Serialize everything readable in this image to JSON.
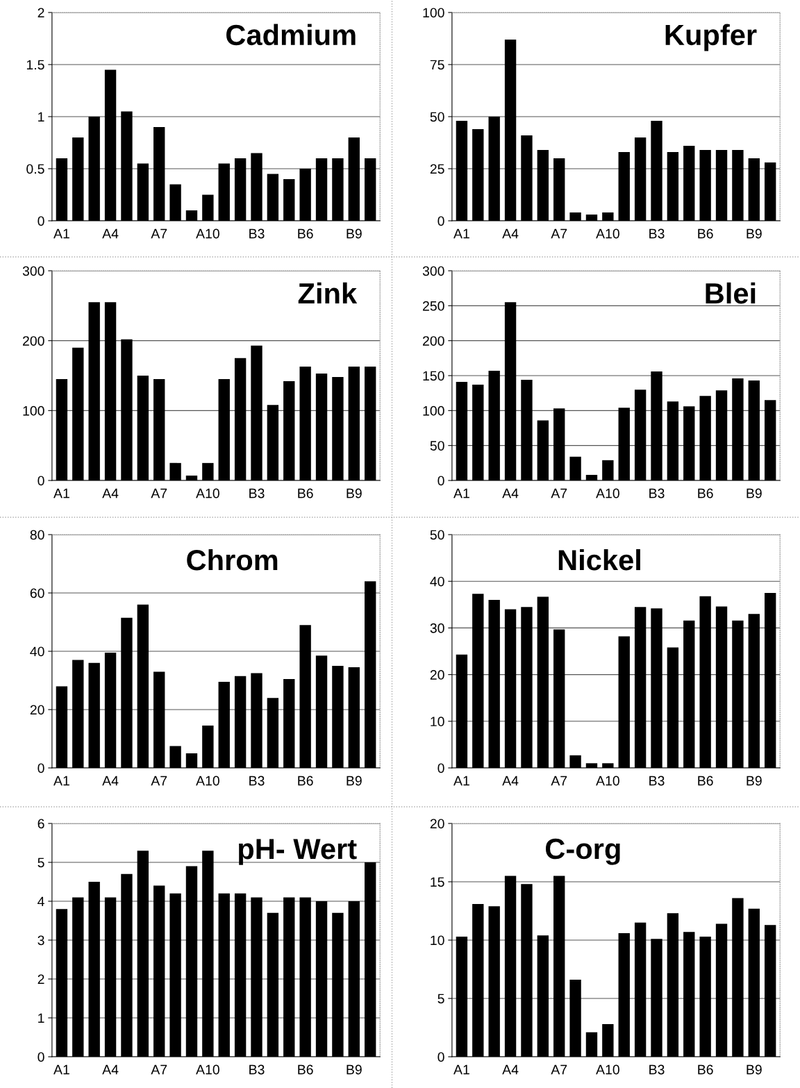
{
  "chart_data": [
    {
      "type": "bar",
      "title": "Cadmium",
      "categories": [
        "A1",
        null,
        null,
        "A4",
        null,
        null,
        "A7",
        null,
        null,
        "A10",
        null,
        null,
        "B3",
        null,
        null,
        "B6",
        null,
        null,
        "B9",
        null
      ],
      "color": "#000000",
      "values": [
        0.6,
        0.8,
        1.0,
        1.45,
        1.05,
        0.55,
        0.9,
        0.35,
        0.1,
        0.25,
        0.55,
        0.6,
        0.65,
        0.45,
        0.4,
        0.5,
        0.6,
        0.6,
        0.8,
        0.6
      ],
      "ylim": [
        0,
        2
      ],
      "yticks": [
        0,
        0.5,
        1,
        1.5,
        2
      ],
      "grid": "y",
      "legend": false
    },
    {
      "type": "bar",
      "title": "Kupfer",
      "categories": [
        "A1",
        null,
        null,
        "A4",
        null,
        null,
        "A7",
        null,
        null,
        "A10",
        null,
        null,
        "B3",
        null,
        null,
        "B6",
        null,
        null,
        "B9",
        null
      ],
      "color": "#000000",
      "values": [
        48,
        44,
        50,
        87,
        41,
        34,
        30,
        4,
        3,
        4,
        33,
        40,
        48,
        33,
        36,
        34,
        34,
        34,
        30,
        28
      ],
      "ylim": [
        0,
        100
      ],
      "yticks": [
        0,
        25,
        50,
        75,
        100
      ],
      "grid": "y",
      "legend": false
    },
    {
      "type": "bar",
      "title": "Zink",
      "categories": [
        "A1",
        null,
        null,
        "A4",
        null,
        null,
        "A7",
        null,
        null,
        "A10",
        null,
        null,
        "B3",
        null,
        null,
        "B6",
        null,
        null,
        "B9",
        null
      ],
      "color": "#000000",
      "values": [
        145,
        190,
        255,
        255,
        202,
        150,
        145,
        25,
        7,
        25,
        145,
        175,
        193,
        108,
        142,
        163,
        153,
        148,
        163,
        163
      ],
      "ylim": [
        0,
        300
      ],
      "yticks": [
        0,
        100,
        200,
        300
      ],
      "grid": "y",
      "legend": false
    },
    {
      "type": "bar",
      "title": "Blei",
      "categories": [
        "A1",
        null,
        null,
        "A4",
        null,
        null,
        "A7",
        null,
        null,
        "A10",
        null,
        null,
        "B3",
        null,
        null,
        "B6",
        null,
        null,
        "B9",
        null
      ],
      "color": "#000000",
      "values": [
        141,
        137,
        157,
        255,
        144,
        86,
        103,
        34,
        8,
        29,
        104,
        130,
        156,
        113,
        106,
        121,
        129,
        146,
        143,
        115
      ],
      "ylim": [
        0,
        300
      ],
      "yticks": [
        0,
        50,
        100,
        150,
        200,
        250,
        300
      ],
      "grid": "y",
      "legend": false
    },
    {
      "type": "bar",
      "title": "Chrom",
      "categories": [
        "A1",
        null,
        null,
        "A4",
        null,
        null,
        "A7",
        null,
        null,
        "A10",
        null,
        null,
        "B3",
        null,
        null,
        "B6",
        null,
        null,
        "B9",
        null
      ],
      "color": "#000000",
      "values": [
        28,
        37,
        36,
        39.5,
        51.5,
        56,
        33,
        7.5,
        5,
        14.5,
        29.5,
        31.5,
        32.5,
        24,
        30.5,
        49,
        38.5,
        35,
        34.5,
        64
      ],
      "ylim": [
        0,
        80
      ],
      "yticks": [
        0,
        20,
        40,
        60,
        80
      ],
      "grid": "y",
      "legend": false
    },
    {
      "type": "bar",
      "title": "Nickel",
      "categories": [
        "A1",
        null,
        null,
        "A4",
        null,
        null,
        "A7",
        null,
        null,
        "A10",
        null,
        null,
        "B3",
        null,
        null,
        "B6",
        null,
        null,
        "B9",
        null
      ],
      "color": "#000000",
      "values": [
        24.3,
        37.3,
        36,
        34,
        34.5,
        36.7,
        29.7,
        2.7,
        1,
        1,
        28.2,
        34.5,
        34.2,
        25.8,
        31.6,
        36.8,
        34.6,
        31.6,
        33,
        37.5
      ],
      "ylim": [
        0,
        50
      ],
      "yticks": [
        0,
        10,
        20,
        30,
        40,
        50
      ],
      "grid": "y",
      "legend": false
    },
    {
      "type": "bar",
      "title": "pH- Wert",
      "categories": [
        "A1",
        null,
        null,
        "A4",
        null,
        null,
        "A7",
        null,
        null,
        "A10",
        null,
        null,
        "B3",
        null,
        null,
        "B6",
        null,
        null,
        "B9",
        null
      ],
      "color": "#000000",
      "values": [
        3.8,
        4.1,
        4.5,
        4.1,
        4.7,
        5.3,
        4.4,
        4.2,
        4.9,
        5.3,
        4.2,
        4.2,
        4.1,
        3.7,
        4.1,
        4.1,
        4.0,
        3.7,
        4.0,
        5.0
      ],
      "ylim": [
        0,
        6
      ],
      "yticks": [
        0,
        1,
        2,
        3,
        4,
        5,
        6
      ],
      "grid": "y",
      "legend": false
    },
    {
      "type": "bar",
      "title": "C-org",
      "categories": [
        "A1",
        null,
        null,
        "A4",
        null,
        null,
        "A7",
        null,
        null,
        "A10",
        null,
        null,
        "B3",
        null,
        null,
        "B6",
        null,
        null,
        "B9",
        null
      ],
      "color": "#000000",
      "values": [
        10.3,
        13.1,
        12.9,
        15.5,
        14.8,
        10.4,
        15.5,
        6.6,
        2.1,
        2.8,
        10.6,
        11.5,
        10.1,
        12.3,
        10.7,
        10.3,
        11.4,
        13.6,
        12.7,
        11.3
      ],
      "ylim": [
        0,
        20
      ],
      "yticks": [
        0,
        5,
        10,
        15,
        20
      ],
      "grid": "y",
      "legend": false
    }
  ]
}
